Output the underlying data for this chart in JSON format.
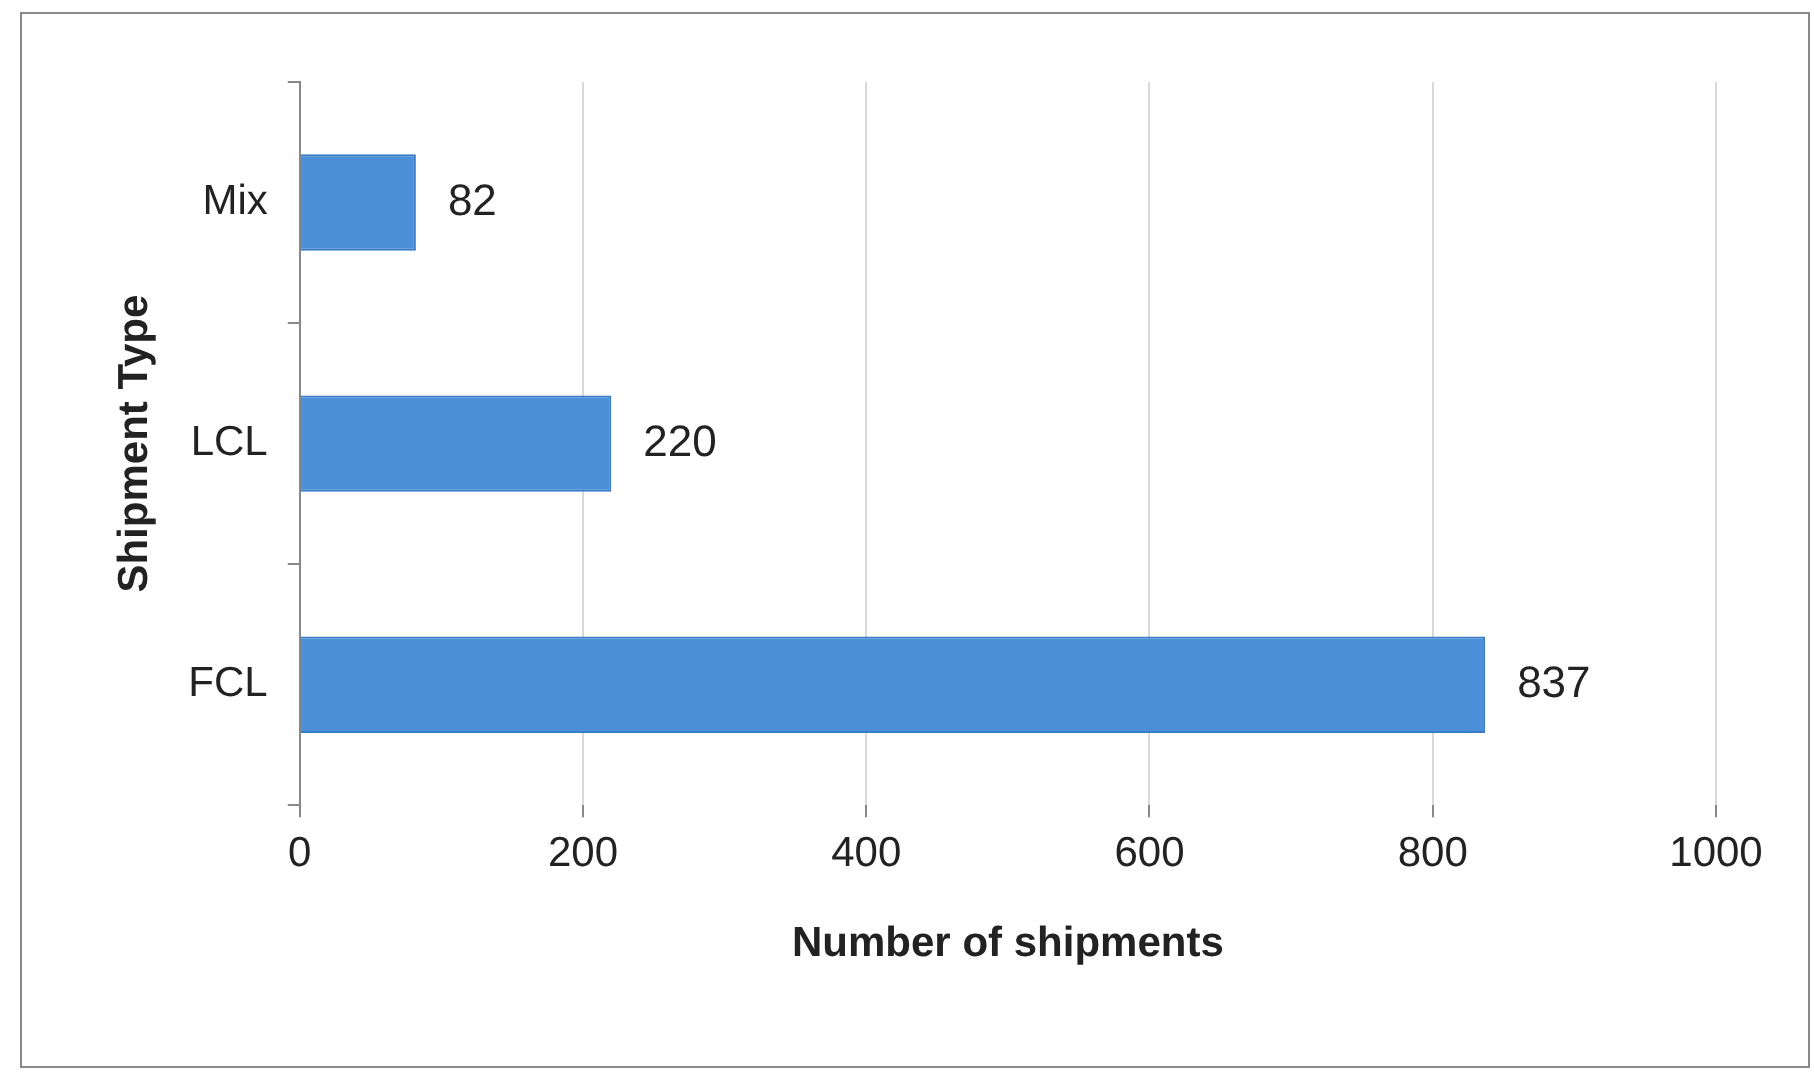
{
  "chart_data": {
    "type": "bar",
    "orientation": "horizontal",
    "xlabel": "Number of shipments",
    "ylabel": "Shipment Type",
    "categories": [
      "Mix",
      "LCL",
      "FCL"
    ],
    "values": [
      82,
      220,
      837
    ],
    "color": "#4a8fd8",
    "xlim": [
      0,
      1000
    ],
    "xticks": [
      0,
      200,
      400,
      600,
      800,
      1000
    ],
    "grid": "x",
    "data_labels": true
  }
}
